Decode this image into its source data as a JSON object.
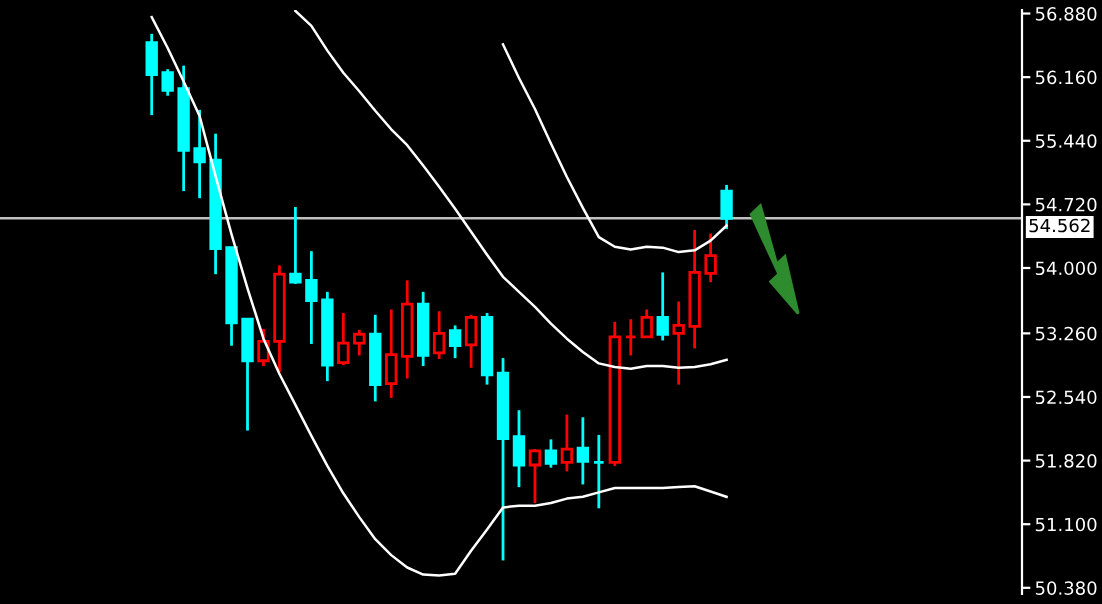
{
  "chart_data": {
    "type": "candlestick",
    "categories": [
      null,
      null,
      null,
      null,
      null,
      null,
      null,
      null,
      null,
      null,
      null,
      null,
      null,
      null,
      null,
      null,
      null,
      null,
      null,
      null,
      null,
      null,
      null,
      null,
      null,
      null,
      null,
      null,
      null,
      null,
      null,
      null,
      null,
      null,
      null,
      null,
      null,
      null,
      null,
      null,
      null,
      null,
      null,
      null,
      null,
      null,
      null,
      null,
      null,
      null,
      null,
      null,
      null,
      null,
      null,
      null,
      null,
      null,
      null,
      null,
      null,
      null,
      null,
      null
    ],
    "ohlc": [
      null,
      null,
      null,
      null,
      null,
      null,
      null,
      null,
      null,
      [
        56.55,
        56.65,
        55.73,
        56.19
      ],
      [
        56.21,
        56.25,
        55.95,
        56.01
      ],
      [
        56.03,
        56.29,
        54.87,
        55.33
      ],
      [
        55.35,
        55.79,
        54.79,
        55.2
      ],
      [
        55.22,
        55.52,
        53.93,
        54.22
      ],
      [
        54.23,
        54.23,
        53.12,
        53.38
      ],
      [
        53.42,
        53.43,
        52.16,
        52.95
      ],
      [
        52.95,
        53.31,
        52.89,
        53.17
      ],
      [
        53.17,
        54.03,
        52.82,
        53.93
      ],
      [
        53.93,
        54.69,
        53.82,
        53.84
      ],
      [
        53.86,
        54.19,
        53.14,
        53.63
      ],
      [
        53.64,
        53.73,
        52.72,
        52.9
      ],
      [
        52.93,
        53.49,
        52.9,
        53.15
      ],
      [
        53.15,
        53.3,
        53.01,
        53.25
      ],
      [
        53.25,
        53.47,
        52.49,
        52.68
      ],
      [
        52.69,
        53.53,
        52.53,
        53.02
      ],
      [
        53.0,
        53.86,
        52.75,
        53.59
      ],
      [
        53.59,
        53.73,
        52.89,
        53.01
      ],
      [
        53.04,
        53.51,
        52.97,
        53.26
      ],
      [
        53.29,
        53.35,
        52.98,
        53.12
      ],
      [
        53.13,
        53.47,
        52.87,
        53.44
      ],
      [
        53.44,
        53.49,
        52.68,
        52.79
      ],
      [
        52.81,
        52.98,
        50.69,
        52.07
      ],
      [
        52.09,
        52.39,
        51.52,
        51.77
      ],
      [
        51.77,
        51.95,
        51.34,
        51.93
      ],
      [
        51.93,
        52.06,
        51.74,
        51.79
      ],
      [
        51.8,
        52.34,
        51.7,
        51.95
      ],
      [
        51.96,
        52.31,
        51.55,
        51.81
      ],
      [
        51.8,
        52.11,
        51.28,
        51.8
      ],
      [
        51.8,
        53.39,
        51.76,
        53.22
      ],
      [
        53.22,
        53.42,
        53.01,
        53.22
      ],
      [
        53.22,
        53.53,
        53.22,
        53.44
      ],
      [
        53.44,
        53.95,
        53.18,
        53.25
      ],
      [
        53.26,
        53.62,
        52.68,
        53.35
      ],
      [
        53.34,
        54.43,
        53.09,
        53.95
      ],
      [
        53.94,
        54.39,
        53.84,
        54.14
      ],
      [
        54.87,
        54.94,
        54.44,
        54.562
      ],
      null,
      null,
      null,
      null,
      null,
      null,
      null,
      null,
      null,
      null,
      null,
      null,
      null,
      null,
      null,
      null,
      null,
      null
    ],
    "colors": [
      null,
      null,
      null,
      null,
      null,
      null,
      null,
      null,
      "#00ffff",
      "#00ffff",
      "#00ffff",
      "#00ffff",
      "#00ffff",
      "#00ffff",
      "#00ffff",
      "#00ffff",
      "#ff0000",
      "#ff0000",
      "#00ffff",
      "#00ffff",
      "#00ffff",
      "#ff0000",
      "#ff0000",
      "#00ffff",
      "#ff0000",
      "#ff0000",
      "#00ffff",
      "#ff0000",
      "#00ffff",
      "#ff0000",
      "#00ffff",
      "#00ffff",
      "#00ffff",
      "#ff0000",
      "#00ffff",
      "#ff0000",
      "#00ffff",
      "#00ffff",
      "#ff0000",
      "#ff0000",
      "#ff0000",
      "#00ffff",
      "#ff0000",
      "#ff0000",
      "#ff0000",
      "#00ffff",
      null,
      null,
      null,
      null,
      null,
      null,
      null,
      null,
      null,
      null,
      null,
      null,
      null,
      null,
      null,
      null,
      null,
      null
    ],
    "series": [
      {
        "type": "line",
        "color": "#ffffff",
        "values": [
          null,
          null,
          null,
          null,
          null,
          null,
          null,
          null,
          null,
          56.84,
          56.49,
          56.11,
          55.72,
          55.04,
          54.38,
          53.77,
          53.2,
          52.8,
          52.45,
          52.1,
          51.76,
          51.45,
          51.18,
          50.93,
          50.75,
          50.61,
          50.53,
          50.52,
          50.54,
          50.8,
          51.04,
          51.29,
          51.31,
          51.31,
          51.34,
          51.39,
          51.41,
          51.46,
          51.51,
          51.51,
          51.51,
          51.51,
          51.52,
          51.53,
          51.47,
          51.41,
          null,
          null,
          null,
          null,
          null,
          null,
          null,
          null,
          null,
          null,
          null,
          null,
          null,
          null,
          null,
          null,
          null,
          null
        ]
      },
      {
        "type": "line",
        "color": "#ffffff",
        "values": [
          null,
          null,
          null,
          null,
          null,
          null,
          null,
          null,
          null,
          null,
          null,
          null,
          null,
          null,
          null,
          null,
          null,
          null,
          56.91,
          56.74,
          56.46,
          56.21,
          56.0,
          55.78,
          55.57,
          55.39,
          55.16,
          54.92,
          54.67,
          54.41,
          54.15,
          53.9,
          53.73,
          53.56,
          53.37,
          53.2,
          53.05,
          52.92,
          52.88,
          52.86,
          52.89,
          52.89,
          52.87,
          52.88,
          52.91,
          52.96,
          null,
          null,
          null,
          null,
          null,
          null,
          null,
          null,
          null,
          null,
          null,
          null,
          null,
          null,
          null,
          null,
          null,
          null
        ]
      },
      {
        "type": "line",
        "color": "#ffffff",
        "values": [
          null,
          null,
          null,
          null,
          null,
          null,
          null,
          null,
          null,
          null,
          null,
          null,
          null,
          null,
          null,
          null,
          null,
          null,
          null,
          null,
          null,
          null,
          null,
          null,
          null,
          null,
          null,
          null,
          null,
          null,
          null,
          56.53,
          56.15,
          55.8,
          55.41,
          55.03,
          54.68,
          54.35,
          54.24,
          54.21,
          54.24,
          54.23,
          54.18,
          54.2,
          54.31,
          54.48,
          null,
          null,
          null,
          null,
          null,
          null,
          null,
          null,
          null,
          null,
          null,
          null,
          null,
          null,
          null,
          null,
          null,
          null
        ]
      }
    ],
    "ylim": [
      50.31,
      56.92
    ],
    "yticks": [
      {
        "value": 56.88,
        "label": "56.880"
      },
      {
        "value": 56.16,
        "label": "56.160"
      },
      {
        "value": 55.44,
        "label": "55.440"
      },
      {
        "value": 54.72,
        "label": "54.720"
      },
      {
        "value": 54.0,
        "label": "54.000"
      },
      {
        "value": 53.26,
        "label": "53.260"
      },
      {
        "value": 52.54,
        "label": "52.540"
      },
      {
        "value": 51.82,
        "label": "51.820"
      },
      {
        "value": 51.1,
        "label": "51.100"
      },
      {
        "value": 50.38,
        "label": "50.380"
      }
    ],
    "ref_lines": [
      {
        "axis": "y",
        "value": 54.562,
        "label": "54.562",
        "color": "#c0c0c0"
      }
    ],
    "tick_labels": "y",
    "grid": false,
    "legend": false
  }
}
